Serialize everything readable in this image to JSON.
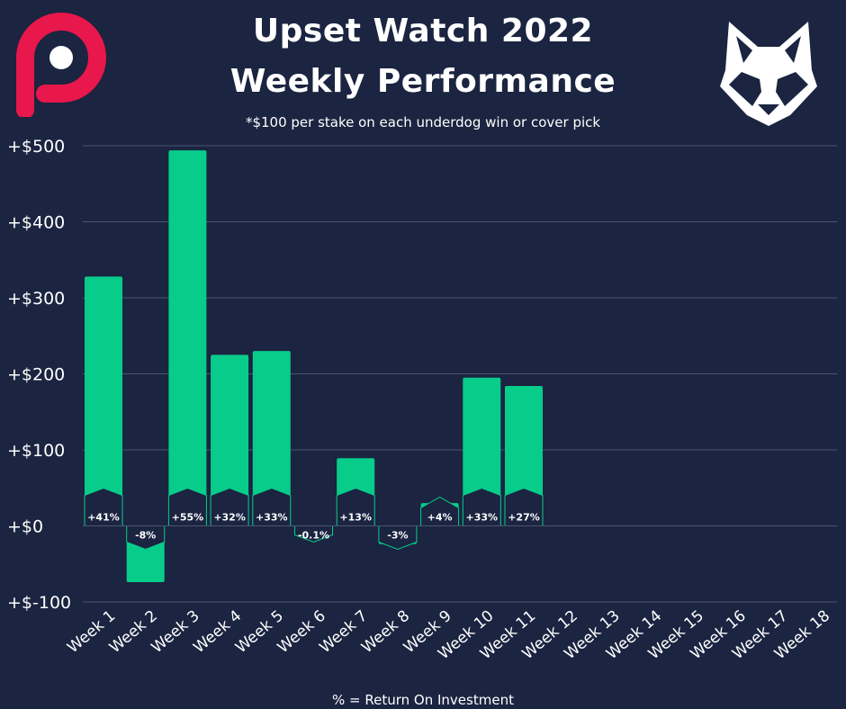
{
  "header": {
    "title_line1": "Upset Watch 2022",
    "title_line2": "Weekly Performance",
    "subtitle": "*$100 per stake on each underdog win or cover pick"
  },
  "footer": {
    "note": "% = Return On Investment"
  },
  "logos": {
    "left": "p-logo-icon",
    "right": "wolf-head-icon"
  },
  "colors": {
    "background": "#1b2440",
    "bar": "#08cc8a",
    "logo_left": "#e8174c",
    "badge": "#1b2440",
    "grid": "#4b5570",
    "text": "#ffffff"
  },
  "chart_data": {
    "type": "bar",
    "categories": [
      "Week 1",
      "Week 2",
      "Week 3",
      "Week 4",
      "Week 5",
      "Week 6",
      "Week 7",
      "Week 8",
      "Week 9",
      "Week 10",
      "Week 11",
      "Week 12",
      "Week 13",
      "Week 14",
      "Week 15",
      "Week 16",
      "Week 17",
      "Week 18"
    ],
    "values": [
      328,
      -74,
      494,
      225,
      230,
      -1,
      89,
      -24,
      30,
      195,
      184,
      null,
      null,
      null,
      null,
      null,
      null,
      null
    ],
    "roi_labels": [
      "+41%",
      "-8%",
      "+55%",
      "+32%",
      "+33%",
      "-0.1%",
      "+13%",
      "-3%",
      "+4%",
      "+33%",
      "+27%",
      "",
      "",
      "",
      "",
      "",
      "",
      ""
    ],
    "ylim": [
      -100,
      500
    ],
    "yticks": [
      -100,
      0,
      100,
      200,
      300,
      400,
      500
    ],
    "ytick_labels": [
      "+$-100",
      "+$0",
      "+$100",
      "+$200",
      "+$300",
      "+$400",
      "+$500"
    ],
    "grid": true
  }
}
